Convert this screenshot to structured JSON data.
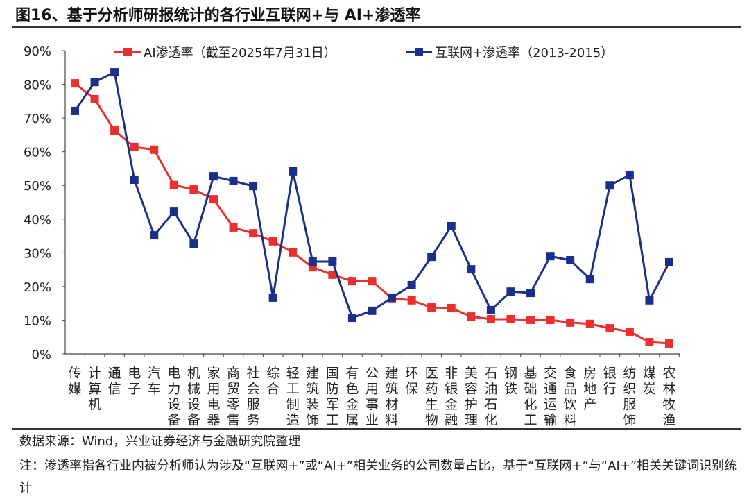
{
  "title": "图16、基于分析师研报统计的各行业互联网+与 AI+渗透率",
  "source": "数据来源：Wind，兴业证券经济与金融研究院整理",
  "note": "注：渗透率指各行业内被分析师认为涉及“互联网+”或“AI+”相关业务的公司数量占比，基于“互联网+”与“AI+”相关关键词识别统计",
  "chart_data": {
    "type": "line",
    "title": "",
    "xlabel": "",
    "ylabel": "",
    "ylim": [
      0,
      90
    ],
    "yticks": [
      "0%",
      "10%",
      "20%",
      "30%",
      "40%",
      "50%",
      "60%",
      "70%",
      "80%",
      "90%"
    ],
    "grid": false,
    "legend": "top",
    "categories": [
      "传媒",
      "计算机",
      "通信",
      "电子",
      "汽车",
      "电力设备",
      "机械设备",
      "家用电器",
      "商贸零售",
      "社会服务",
      "综合",
      "轻工制造",
      "建筑装饰",
      "国防军工",
      "有色金属",
      "公用事业",
      "建筑材料",
      "环保",
      "医药生物",
      "非银金融",
      "美容护理",
      "石油石化",
      "钢铁",
      "基础化工",
      "交通运输",
      "食品饮料",
      "房地产",
      "银行",
      "纺织服饰",
      "煤炭",
      "农林牧渔"
    ],
    "series": [
      {
        "name": "AI渗透率（截至2025年7月31日）",
        "color": "#e8312f",
        "values": [
          80.3,
          75.6,
          66.3,
          61.4,
          60.6,
          50.1,
          48.8,
          45.9,
          37.5,
          35.8,
          33.4,
          30.1,
          25.7,
          23.5,
          21.6,
          21.6,
          16.5,
          15.9,
          13.8,
          13.6,
          11.1,
          10.3,
          10.3,
          10.1,
          10.1,
          9.3,
          8.9,
          7.6,
          6.6,
          3.5,
          3.1
        ]
      },
      {
        "name": "互联网+渗透率（2013-2015）",
        "color": "#1b2f8a",
        "values": [
          72.1,
          80.7,
          83.6,
          51.7,
          35.2,
          42.2,
          32.7,
          52.7,
          51.3,
          49.8,
          16.7,
          54.2,
          27.4,
          27.4,
          10.7,
          12.8,
          16.7,
          20.4,
          28.8,
          37.9,
          25.1,
          13.0,
          18.5,
          18.1,
          29.0,
          27.8,
          22.2,
          50.0,
          53.1,
          15.9,
          27.2
        ]
      }
    ]
  }
}
